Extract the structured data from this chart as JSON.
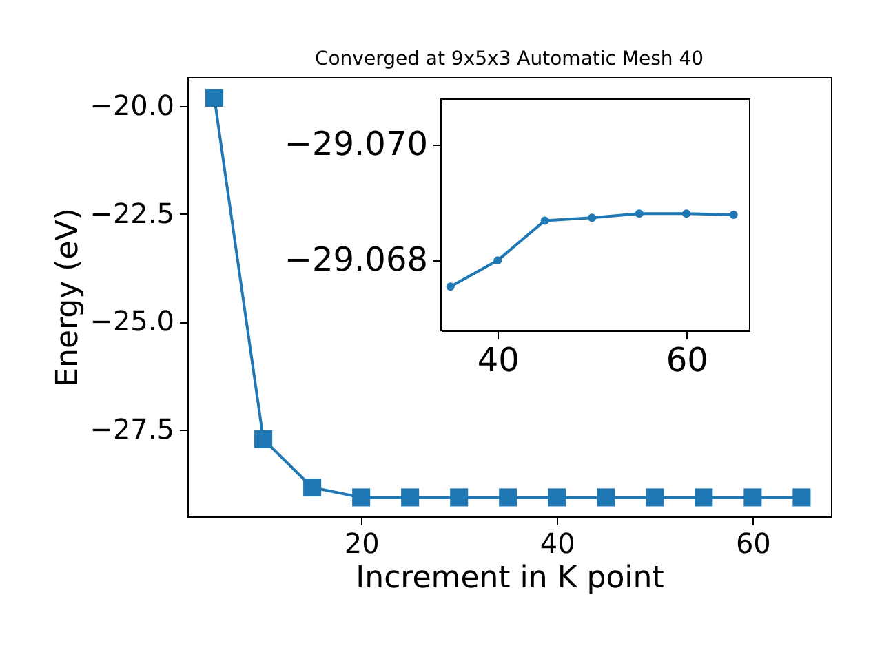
{
  "chart_data": [
    {
      "type": "line",
      "title": "Converged at 9x5x3 Automatic Mesh 40",
      "xlabel": "Increment in K point",
      "ylabel": "Energy (eV)",
      "x": [
        5,
        10,
        15,
        20,
        25,
        30,
        35,
        40,
        45,
        50,
        55,
        60,
        65
      ],
      "series": [
        {
          "color": "#1f77b4",
          "values": [
            -19.81,
            -27.72,
            -28.84,
            -29.07,
            -29.07,
            -29.07,
            -29.07,
            -29.07,
            -29.07,
            -29.07,
            -29.07,
            -29.07,
            -29.07
          ]
        }
      ],
      "xlim": [
        2.25,
        68.0
      ],
      "ylim": [
        -29.51,
        -19.33
      ],
      "xticks": [
        20,
        40,
        60
      ],
      "yticks": [
        {
          "value": -20,
          "label": "−20.0"
        },
        {
          "value": -22.5,
          "label": "−22.5"
        },
        {
          "value": -25,
          "label": "−25.0"
        },
        {
          "value": -27.5,
          "label": "−27.5"
        }
      ],
      "marker": "square",
      "grid": false
    },
    {
      "type": "line",
      "x": [
        35,
        40,
        45,
        50,
        55,
        60,
        65
      ],
      "series": [
        {
          "color": "#1f77b4",
          "values": [
            -29.06755,
            -29.068,
            -29.06869,
            -29.06874,
            -29.06881,
            -29.06881,
            -29.06879
          ]
        }
      ],
      "xlim": [
        34.0,
        66.7
      ],
      "ylim": [
        -29.06679,
        -29.07079
      ],
      "xticks": [
        40,
        60
      ],
      "yticks": [
        {
          "value": -29.07,
          "label": "−29.070"
        },
        {
          "value": -29.068,
          "label": "−29.068"
        }
      ],
      "marker": "circle",
      "grid": false
    }
  ]
}
